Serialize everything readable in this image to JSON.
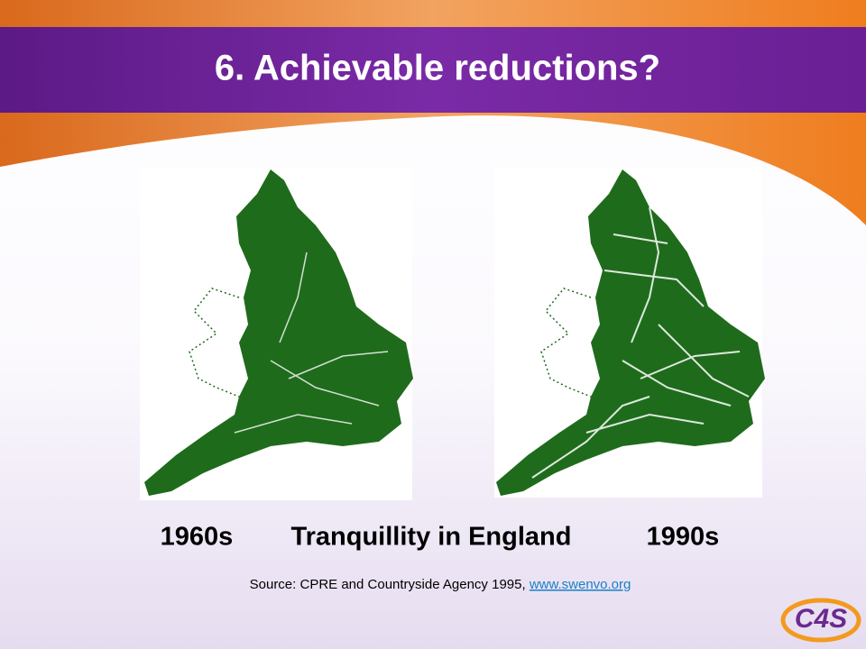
{
  "slide": {
    "title": "6. Achievable reductions?",
    "labels": {
      "left": "1960s",
      "center": "Tranquillity in England",
      "right": "1990s"
    },
    "source": {
      "text": "Source: CPRE and Countryside Agency 1995, ",
      "link": "www.swenvo.org"
    },
    "logo": "C4S"
  }
}
